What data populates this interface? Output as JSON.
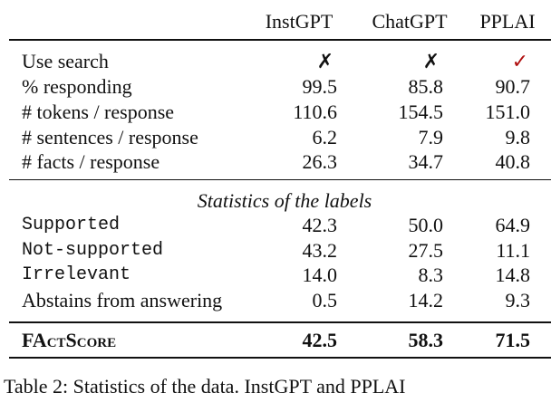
{
  "table": {
    "header": [
      "InstGPT",
      "ChatGPT",
      "PPLAI"
    ],
    "rows": [
      {
        "label": "Use search",
        "cells": [
          "✗",
          "✗",
          "✓"
        ]
      },
      {
        "label": "% responding",
        "cells": [
          "99.5",
          "85.8",
          "90.7"
        ]
      },
      {
        "label": "# tokens / response",
        "cells": [
          "110.6",
          "154.5",
          "151.0"
        ]
      },
      {
        "label": "# sentences / response",
        "cells": [
          "6.2",
          "7.9",
          "9.8"
        ]
      },
      {
        "label": "# facts / response",
        "cells": [
          "26.3",
          "34.7",
          "40.8"
        ]
      }
    ],
    "section": "Statistics of the labels",
    "label_rows": [
      {
        "label": "Supported",
        "cells": [
          "42.3",
          "50.0",
          "64.9"
        ]
      },
      {
        "label": "Not-supported",
        "cells": [
          "43.2",
          "27.5",
          "11.1"
        ]
      },
      {
        "label": "Irrelevant",
        "cells": [
          "14.0",
          "8.3",
          "14.8"
        ]
      },
      {
        "label": "Abstains from answering",
        "cells": [
          "0.5",
          "14.2",
          "9.3"
        ]
      }
    ],
    "score_row": {
      "label": "FActScore",
      "cells": [
        "42.5",
        "58.3",
        "71.5"
      ]
    }
  },
  "caption": "Table 2: Statistics of the data. InstGPT and PPLAI"
}
